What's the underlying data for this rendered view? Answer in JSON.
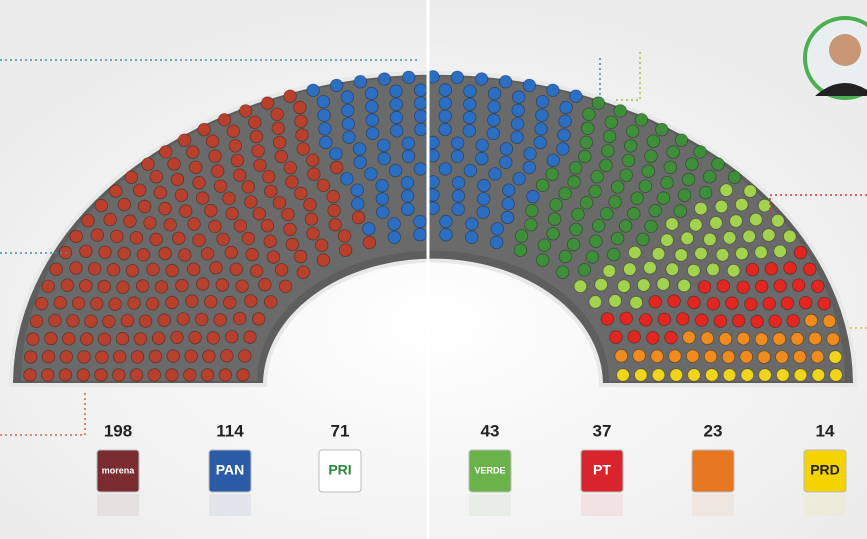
{
  "chart_data": {
    "type": "parliament",
    "categories": [
      "morena",
      "PAN",
      "PRI",
      "VERDE",
      "PT",
      null,
      "PRD"
    ],
    "values": [
      198,
      114,
      71,
      43,
      37,
      23,
      14
    ],
    "colors": [
      "#b8402d",
      "#2b6ec2",
      "#3e8e3a",
      "#a3d24f",
      "#e3261f",
      "#f08c1e",
      "#f1d41c"
    ],
    "logo_colors": [
      "#7b2c30",
      "#2c5ca8",
      "#ffffff",
      "#6cb24a",
      "#d9232d",
      "#e87722",
      "#f5d300"
    ]
  }
}
